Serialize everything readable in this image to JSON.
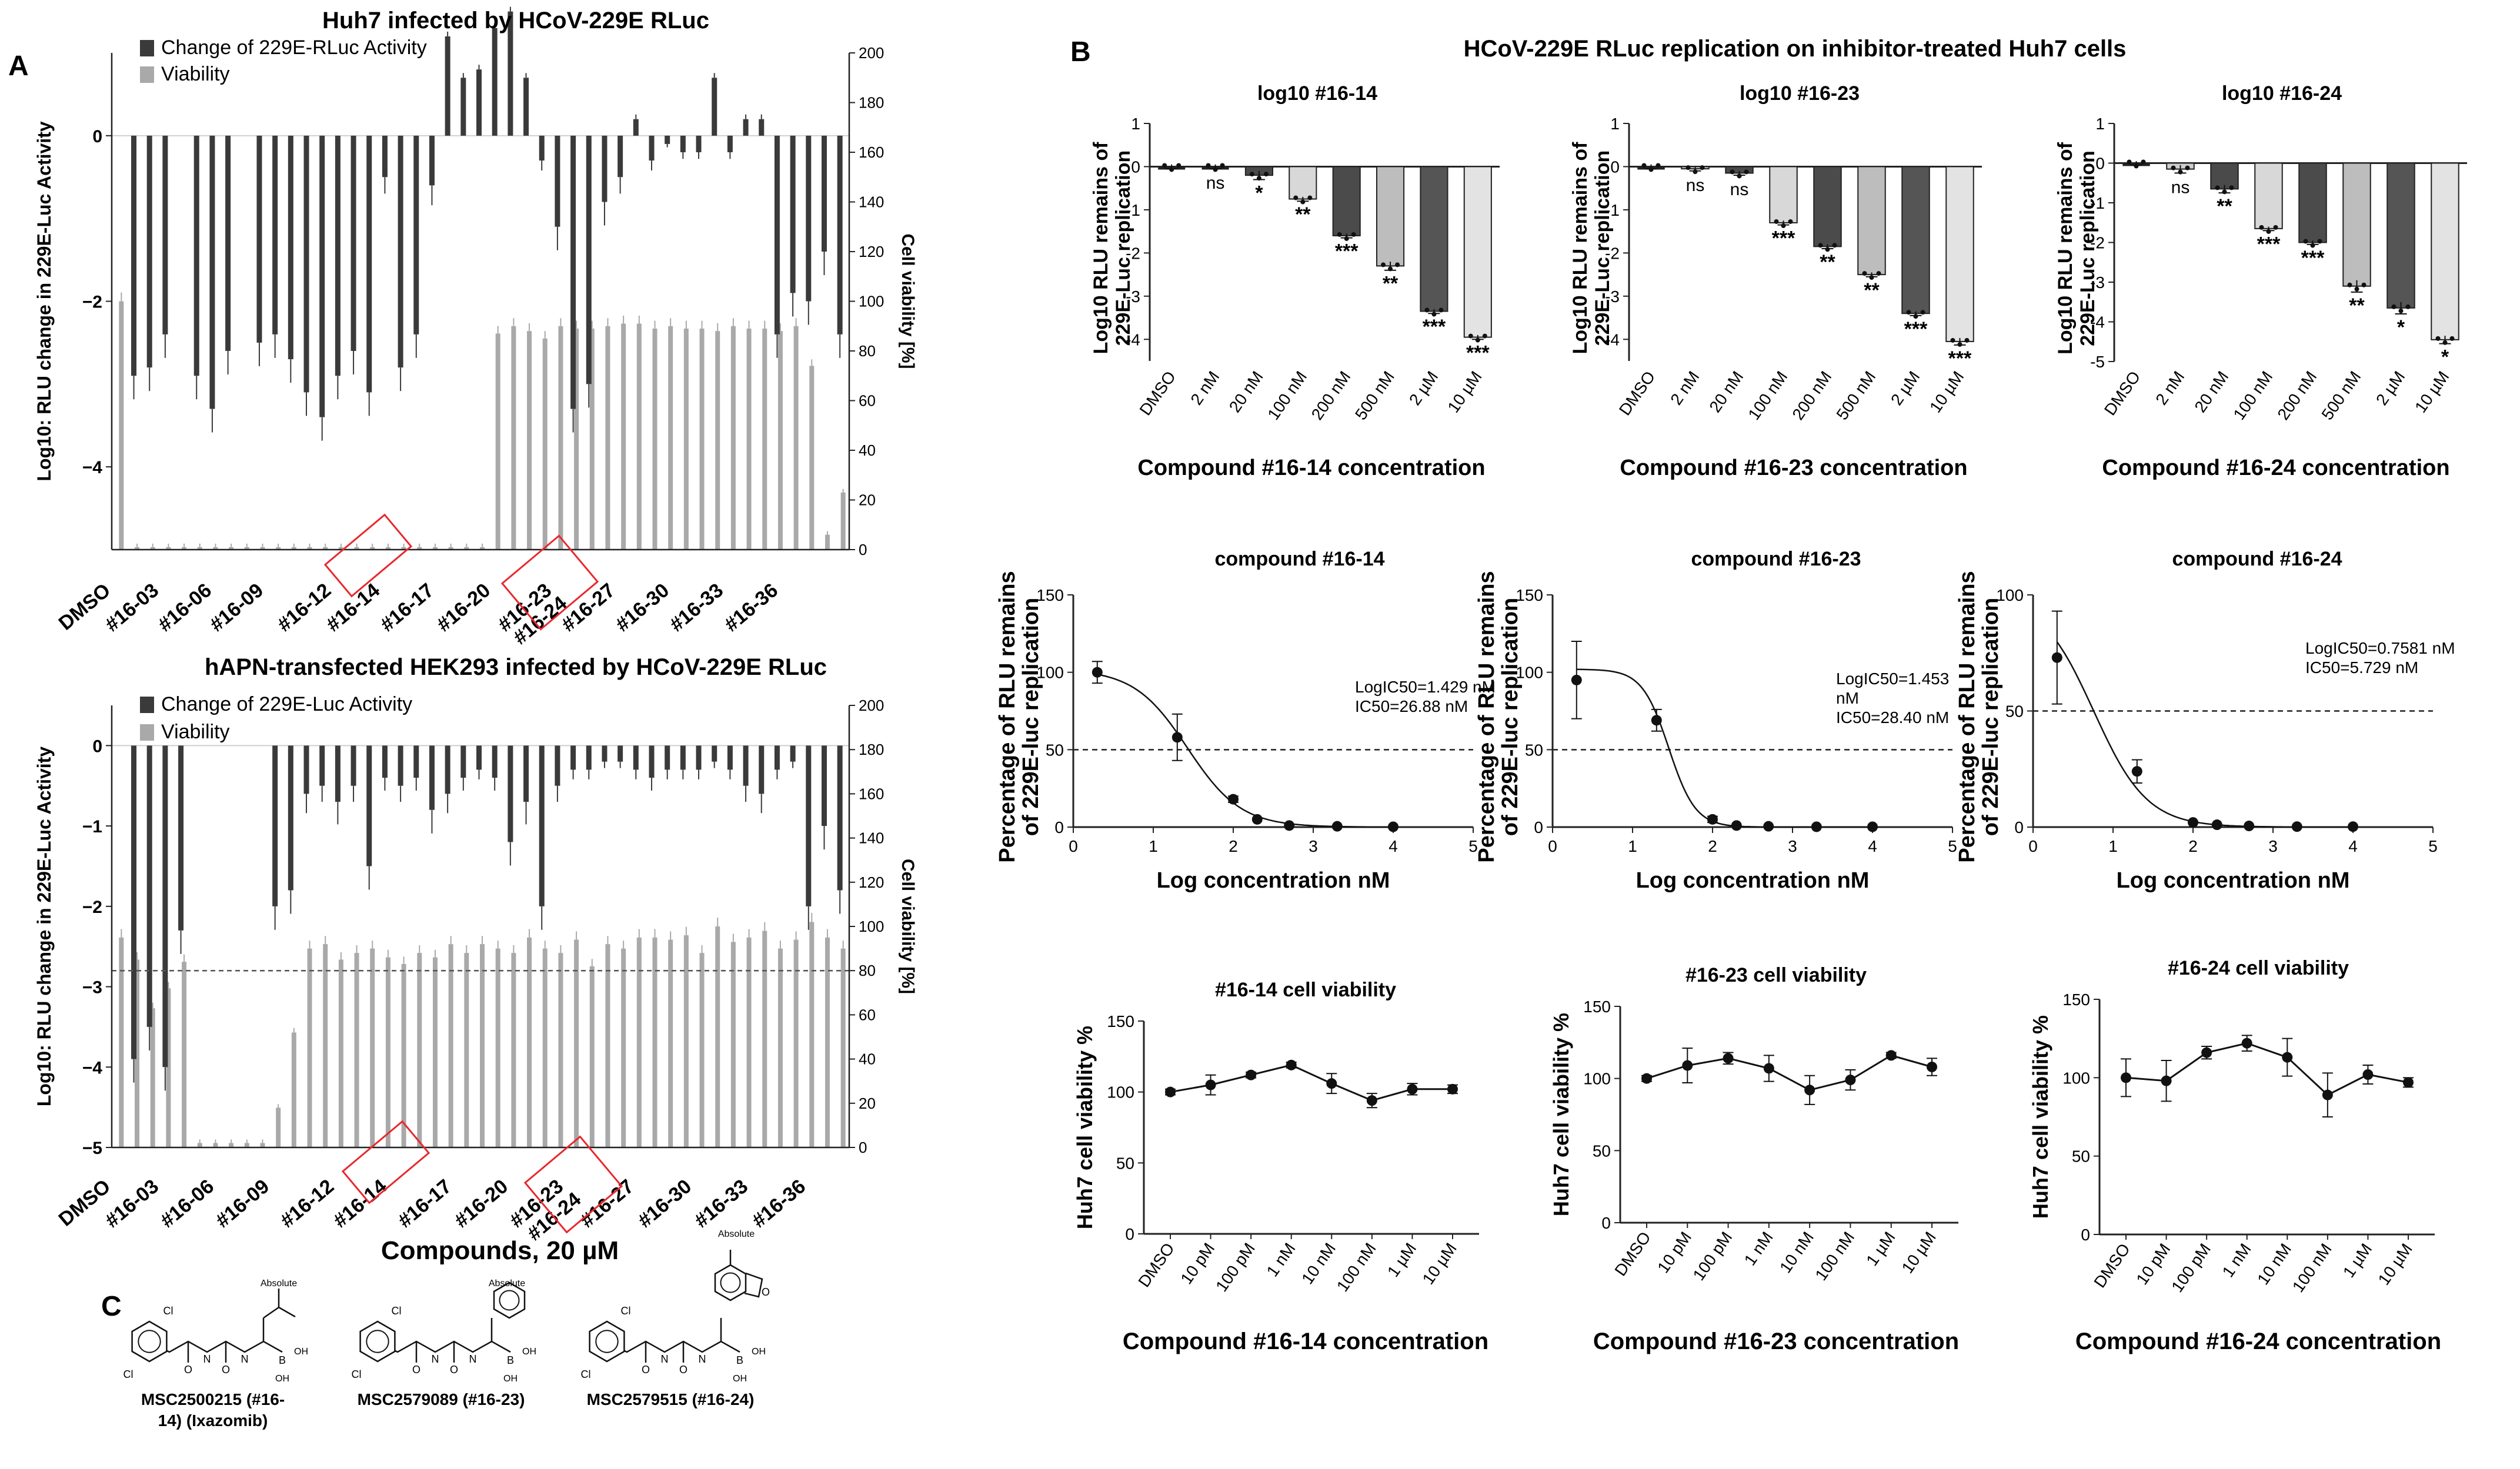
{
  "panels": {
    "a": "A",
    "b": "B",
    "c": "C"
  },
  "colors": {
    "dark": "#3a3a3a",
    "mid": "#7b7b7b",
    "light": "#a9a9a9",
    "lighter": "#d4d4d4",
    "red": "#e8282d"
  },
  "chart_data": [
    {
      "id": "a1",
      "type": "bar",
      "title": "Huh7 infected by HCoV-229E RLuc",
      "legend": [
        "Change of 229E-RLuc Activity",
        "Viability"
      ],
      "ylabel": "Log10: RLU change in 229E-Luc Activity",
      "y2label": "Cell viability [%]",
      "ylim": [
        -5,
        1
      ],
      "y2lim": [
        0,
        200
      ],
      "yticks": [
        0,
        -2,
        -4
      ],
      "y2ticks": [
        0,
        20,
        40,
        60,
        80,
        100,
        120,
        140,
        160,
        180,
        200
      ],
      "ticklabels": [
        "DMSO",
        "#16-03",
        "#16-06",
        "#16-09",
        "#16-12",
        "#16-14",
        "#16-17",
        "#16-20",
        "#16-23",
        "#16-24",
        "#16-27",
        "#16-30",
        "#16-33",
        "#16-36"
      ],
      "highlighted": [
        "#16-14",
        "#16-23",
        "#16-24"
      ],
      "series": [
        {
          "name": "Change of 229E-RLuc Activity",
          "values": [
            0,
            -2.9,
            -2.8,
            -2.4,
            0,
            -2.9,
            -3.3,
            -2.6,
            0,
            -2.5,
            -2.4,
            -2.7,
            -3.1,
            -3.4,
            -2.9,
            -2.6,
            -3.1,
            -0.5,
            -2.8,
            -2.4,
            -0.6,
            1.2,
            0.7,
            0.8,
            1.3,
            1.5,
            0.7,
            -0.3,
            -1.1,
            -3.3,
            -3.0,
            -0.8,
            -0.5,
            0.2,
            -0.3,
            -0.1,
            -0.2,
            -0.2,
            0.7,
            -0.2,
            0.2,
            0.2,
            -2.4,
            -1.9,
            -2.0,
            -1.4,
            -2.4
          ]
        },
        {
          "name": "Viability",
          "values": [
            100,
            1,
            1,
            1,
            1,
            1,
            1,
            1,
            1,
            1,
            1,
            1,
            1,
            1,
            1,
            1,
            1,
            1,
            1,
            1,
            1,
            1,
            1,
            1,
            87,
            90,
            88,
            85,
            90,
            89,
            89,
            90,
            91,
            91,
            89,
            90,
            89,
            89,
            88,
            90,
            89,
            89,
            88,
            90,
            74,
            6,
            23
          ]
        }
      ]
    },
    {
      "id": "a2",
      "type": "bar",
      "title": "hAPN-transfected HEK293 infected by HCoV-229E RLuc",
      "legend": [
        "Change of 229E-Luc Activity",
        "Viability"
      ],
      "ylabel": "Log10: RLU change in 229E-Luc Activity",
      "y2label": "Cell viability [%]",
      "xlabel": "Compounds, 20 µM",
      "ylim": [
        -5,
        0.5
      ],
      "y2lim": [
        0,
        200
      ],
      "yticks": [
        0,
        -1,
        -2,
        -3,
        -4,
        -5
      ],
      "y2ticks": [
        0,
        20,
        40,
        60,
        80,
        100,
        120,
        140,
        160,
        180,
        200
      ],
      "threshold": 80,
      "ticklabels": [
        "DMSO",
        "#16-03",
        "#16-06",
        "#16-09",
        "#16-12",
        "#16-14",
        "#16-17",
        "#16-20",
        "#16-23",
        "#16-24",
        "#16-27",
        "#16-30",
        "#16-33",
        "#16-36"
      ],
      "highlighted": [
        "#16-14",
        "#16-23",
        "#16-24"
      ],
      "series": [
        {
          "name": "Change of 229E-Luc Activity",
          "values": [
            0,
            -3.9,
            -3.5,
            -4.0,
            -2.3,
            0,
            0,
            0,
            0,
            0,
            -2.0,
            -1.8,
            -0.6,
            -0.5,
            -0.7,
            -0.5,
            -1.5,
            -0.4,
            -0.5,
            -0.4,
            -0.8,
            -0.6,
            -0.4,
            -0.3,
            -0.4,
            -1.2,
            -0.7,
            -2.0,
            -0.5,
            -0.3,
            -0.3,
            -0.2,
            -0.2,
            -0.3,
            -0.4,
            -0.3,
            -0.3,
            -0.3,
            -0.2,
            -0.3,
            -0.5,
            -0.6,
            -0.3,
            -0.2,
            -2.0,
            -1.0,
            -1.8
          ]
        },
        {
          "name": "Viability",
          "values": [
            95,
            85,
            63,
            72,
            84,
            2,
            2,
            2,
            2,
            2,
            18,
            52,
            90,
            92,
            85,
            88,
            90,
            86,
            83,
            88,
            86,
            92,
            88,
            92,
            90,
            88,
            95,
            90,
            88,
            94,
            82,
            92,
            90,
            95,
            95,
            94,
            96,
            88,
            100,
            93,
            95,
            98,
            90,
            94,
            102,
            95,
            90
          ]
        }
      ]
    },
    {
      "id": "b1",
      "type": "bar",
      "title": "log10 #16-14",
      "ylabel": [
        "Log10 RLU remains of",
        "229E-Luc replication"
      ],
      "xlabel": "Compound #16-14 concentration",
      "categories": [
        "DMSO",
        "2 nM",
        "20 nM",
        "100 nM",
        "200 nM",
        "500 nM",
        "2 µM",
        "10 µM"
      ],
      "values": [
        0,
        0,
        -0.2,
        -0.75,
        -1.6,
        -2.3,
        -3.35,
        -3.95
      ],
      "errors": [
        0.05,
        0.05,
        0.1,
        0.05,
        0.05,
        0.1,
        0.05,
        0.05
      ],
      "significance": [
        "",
        "ns",
        "*",
        "**",
        "***",
        "**",
        "***",
        "***"
      ],
      "ylim": [
        -4.5,
        1
      ],
      "yticks": [
        1,
        0,
        -1,
        -2,
        -3,
        -4
      ]
    },
    {
      "id": "b2",
      "type": "bar",
      "title": "log10 #16-23",
      "ylabel": [
        "Log10 RLU remains of",
        "229E-Luc replication"
      ],
      "xlabel": "Compound #16-23 concentration",
      "categories": [
        "DMSO",
        "2 nM",
        "20 nM",
        "100 nM",
        "200 nM",
        "500 nM",
        "2 µM",
        "10 µM"
      ],
      "values": [
        0,
        -0.05,
        -0.15,
        -1.3,
        -1.85,
        -2.5,
        -3.4,
        -4.05
      ],
      "errors": [
        0.05,
        0.05,
        0.05,
        0.05,
        0.05,
        0.05,
        0.05,
        0.08
      ],
      "significance": [
        "",
        "ns",
        "ns",
        "***",
        "**",
        "**",
        "***",
        "***"
      ],
      "ylim": [
        -4.5,
        1
      ],
      "yticks": [
        1,
        0,
        -1,
        -2,
        -3,
        -4
      ]
    },
    {
      "id": "b3",
      "type": "bar",
      "title": "log10 #16-24",
      "ylabel": [
        "Log10 RLU remains of",
        "229E-Luc replication"
      ],
      "xlabel": "Compound #16-24 concentration",
      "categories": [
        "DMSO",
        "2 nM",
        "20 nM",
        "100 nM",
        "200 nM",
        "500 nM",
        "2 µM",
        "10 µM"
      ],
      "values": [
        0,
        -0.15,
        -0.65,
        -1.65,
        -2.0,
        -3.1,
        -3.65,
        -4.45
      ],
      "errors": [
        0.05,
        0.1,
        0.1,
        0.05,
        0.05,
        0.15,
        0.15,
        0.1
      ],
      "significance": [
        "",
        "ns",
        "**",
        "***",
        "***",
        "**",
        "*",
        "*"
      ],
      "ylim": [
        -5,
        1
      ],
      "yticks": [
        1,
        0,
        -1,
        -2,
        -3,
        -4,
        -5
      ]
    },
    {
      "id": "c1",
      "type": "scatter",
      "title": "compound #16-14",
      "ylabel": [
        "Percentage of  RLU remains",
        "of 229E-luc replication"
      ],
      "xlabel": "Log concentration nM",
      "x": [
        0.3,
        1.3,
        2.0,
        2.3,
        2.7,
        3.3,
        4.0
      ],
      "y": [
        100,
        58,
        18,
        5,
        1,
        0.5,
        0.2
      ],
      "err": [
        7,
        15,
        2,
        1,
        0.5,
        0.5,
        0.2
      ],
      "logIC50": 1.429,
      "annotation": [
        "LogIC50=1.429 nM",
        "IC50=26.88 nM"
      ],
      "threshold": 50,
      "xlim": [
        0,
        5
      ],
      "ylim": [
        0,
        150
      ],
      "xticks": [
        0,
        1,
        2,
        3,
        4,
        5
      ],
      "yticks": [
        0,
        50,
        100,
        150
      ]
    },
    {
      "id": "c2",
      "type": "scatter",
      "title": "compound #16-23",
      "ylabel": [
        "Percentage of  RLU remains",
        "of 229E-luc replication"
      ],
      "xlabel": "Log concentration nM",
      "x": [
        0.3,
        1.3,
        2.0,
        2.3,
        2.7,
        3.3,
        4.0
      ],
      "y": [
        95,
        69,
        5,
        1,
        0.5,
        0.2,
        0.2
      ],
      "err": [
        25,
        7,
        2,
        0.5,
        0.5,
        0.2,
        0.2
      ],
      "logIC50": 1.453,
      "annotation": [
        "LogIC50=1.453",
        "nM",
        "IC50=28.40 nM"
      ],
      "threshold": 50,
      "xlim": [
        0,
        5
      ],
      "ylim": [
        0,
        150
      ],
      "xticks": [
        0,
        1,
        2,
        3,
        4,
        5
      ],
      "yticks": [
        0,
        50,
        100,
        150
      ]
    },
    {
      "id": "c3",
      "type": "scatter",
      "title": "compound #16-24",
      "ylabel": [
        "Percentage of  RLU remains",
        "of 229E-luc replication"
      ],
      "xlabel": "Log concentration nM",
      "x": [
        0.3,
        1.3,
        2.0,
        2.3,
        2.7,
        3.3,
        4.0
      ],
      "y": [
        73,
        24,
        2,
        1,
        0.5,
        0.2,
        0.2
      ],
      "err": [
        20,
        5,
        1,
        0.5,
        0.3,
        0.2,
        0.2
      ],
      "logIC50": 0.7581,
      "annotation": [
        "LogIC50=0.7581 nM",
        "IC50=5.729 nM"
      ],
      "threshold": 50,
      "xlim": [
        0,
        5
      ],
      "ylim": [
        0,
        100
      ],
      "xticks": [
        0,
        1,
        2,
        3,
        4,
        5
      ],
      "yticks": [
        0,
        50,
        100
      ]
    },
    {
      "id": "d1",
      "type": "line",
      "title": "#16-14 cell viability",
      "ylabel": [
        "Huh7 cell viability %"
      ],
      "xlabel": "Compound #16-14 concentration",
      "categories": [
        "DMSO",
        "10 pM",
        "100 pM",
        "1 nM",
        "10 nM",
        "100 nM",
        "1 µM",
        "10 µM"
      ],
      "values": [
        100,
        105,
        112,
        119,
        106,
        94,
        102,
        102
      ],
      "errors": [
        2,
        7,
        2,
        2,
        7,
        5,
        4,
        3
      ],
      "ylim": [
        0,
        150
      ],
      "yticks": [
        0,
        50,
        100,
        150
      ]
    },
    {
      "id": "d2",
      "type": "line",
      "title": "#16-23 cell viability",
      "ylabel": [
        "Huh7 cell viability %"
      ],
      "xlabel": "Compound #16-23 concentration",
      "categories": [
        "DMSO",
        "10 pM",
        "100 pM",
        "1 nM",
        "10 nM",
        "100 nM",
        "1 µM",
        "10 µM"
      ],
      "values": [
        100,
        109,
        114,
        107,
        92,
        99,
        116,
        108
      ],
      "errors": [
        2,
        12,
        4,
        9,
        10,
        7,
        2,
        6
      ],
      "ylim": [
        0,
        150
      ],
      "yticks": [
        0,
        50,
        100,
        150
      ]
    },
    {
      "id": "d3",
      "type": "line",
      "title": "#16-24 cell viability",
      "ylabel": [
        "Huh7 cell viability %"
      ],
      "xlabel": "Compound #16-24 concentration",
      "categories": [
        "DMSO",
        "10 pM",
        "100 pM",
        "1 nM",
        "10 nM",
        "100 nM",
        "1 µM",
        "10 µM"
      ],
      "values": [
        100,
        98,
        116,
        122,
        113,
        89,
        102,
        97
      ],
      "errors": [
        12,
        13,
        4,
        5,
        12,
        14,
        6,
        3
      ],
      "ylim": [
        0,
        150
      ],
      "yticks": [
        0,
        50,
        100,
        150
      ]
    }
  ],
  "panel_b_title": "HCoV-229E RLuc replication on inhibitor-treated Huh7 cells",
  "structures": [
    {
      "name": "MSC2500215 (#16-14) (Ixazomib)",
      "name_lines": [
        "MSC2500215 (#16-",
        "14) (Ixazomib)"
      ],
      "tag": "Absolute"
    },
    {
      "name": "MSC2579089 (#16-23)",
      "name_lines": [
        "MSC2579089 (#16-23)"
      ],
      "tag": "Absolute"
    },
    {
      "name": "MSC2579515 (#16-24)",
      "name_lines": [
        "MSC2579515 (#16-24)"
      ],
      "tag": "Absolute"
    }
  ],
  "atom_labels": {
    "chlorine": "Cl",
    "oxygen": "O",
    "nitrogen": "N",
    "boron": "B",
    "hydroxyl": "OH"
  }
}
